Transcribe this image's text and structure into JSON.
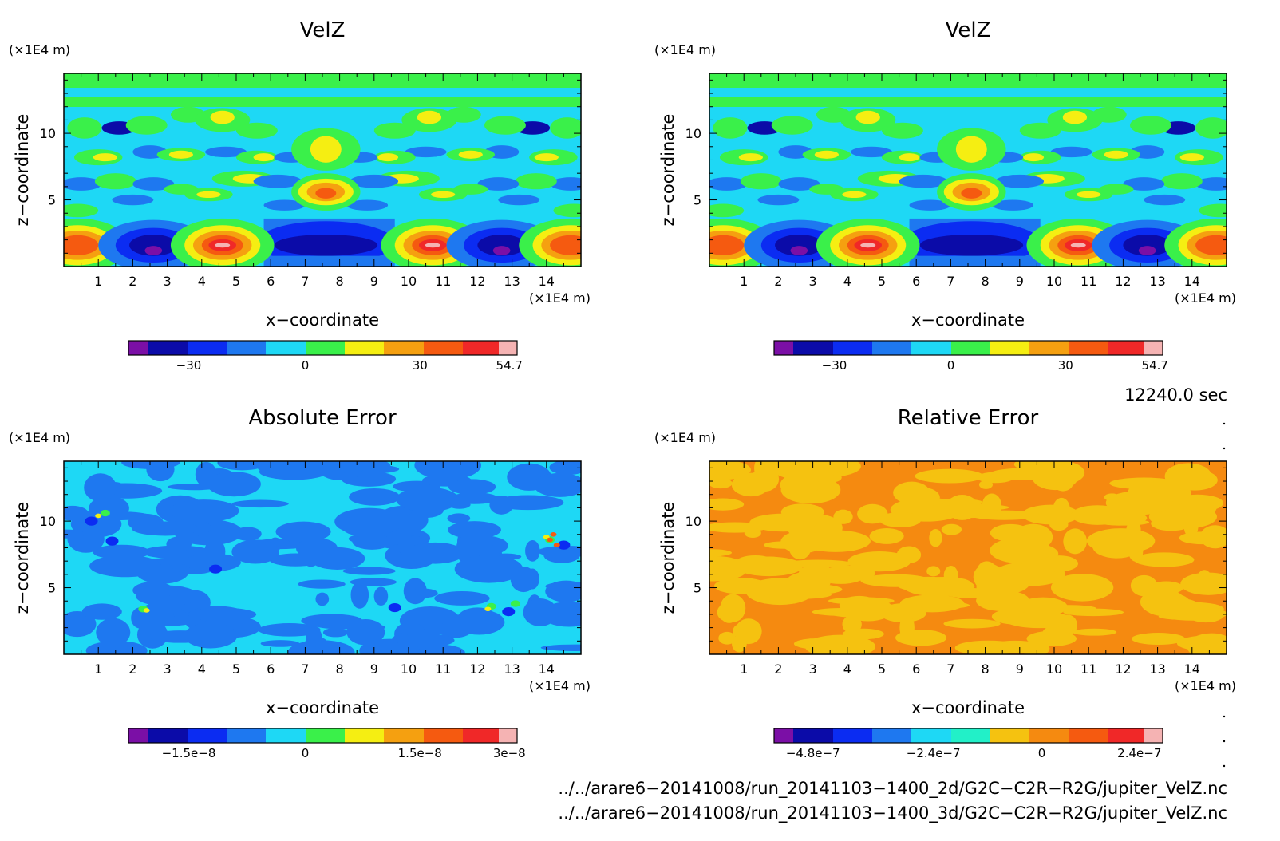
{
  "panels": [
    {
      "title": "VelZ",
      "unit_label_y": "(×1E4 m)",
      "unit_label_x": "(×1E4 m)",
      "xlabel": "x−coordinate",
      "ylabel": "z−coordinate",
      "x_ticks": [
        "1",
        "2",
        "3",
        "4",
        "5",
        "6",
        "7",
        "8",
        "9",
        "10",
        "11",
        "12",
        "13",
        "14"
      ],
      "y_ticks": [
        "5",
        "10"
      ],
      "colorbar": {
        "colors": [
          "#7b0fa6",
          "#0b0ba8",
          "#0b2cf2",
          "#1e78f0",
          "#1ed8f5",
          "#3af04a",
          "#f5ee12",
          "#f5a010",
          "#f55a10",
          "#f02828",
          "#f5b3b3"
        ],
        "labels": [
          "−30",
          "0",
          "30",
          "54.7"
        ]
      }
    },
    {
      "title": "VelZ",
      "unit_label_y": "(×1E4 m)",
      "unit_label_x": "(×1E4 m)",
      "xlabel": "x−coordinate",
      "ylabel": "z−coordinate",
      "x_ticks": [
        "1",
        "2",
        "3",
        "4",
        "5",
        "6",
        "7",
        "8",
        "9",
        "10",
        "11",
        "12",
        "13",
        "14"
      ],
      "y_ticks": [
        "5",
        "10"
      ],
      "colorbar": {
        "colors": [
          "#7b0fa6",
          "#0b0ba8",
          "#0b2cf2",
          "#1e78f0",
          "#1ed8f5",
          "#3af04a",
          "#f5ee12",
          "#f5a010",
          "#f55a10",
          "#f02828",
          "#f5b3b3"
        ],
        "labels": [
          "−30",
          "0",
          "30",
          "54.7"
        ]
      }
    },
    {
      "title": "Absolute Error",
      "unit_label_y": "(×1E4 m)",
      "unit_label_x": "(×1E4 m)",
      "xlabel": "x−coordinate",
      "ylabel": "z−coordinate",
      "x_ticks": [
        "1",
        "2",
        "3",
        "4",
        "5",
        "6",
        "7",
        "8",
        "9",
        "10",
        "11",
        "12",
        "13",
        "14"
      ],
      "y_ticks": [
        "5",
        "10"
      ],
      "colorbar": {
        "colors": [
          "#7b0fa6",
          "#0b0ba8",
          "#0b2cf2",
          "#1e78f0",
          "#1ed8f5",
          "#3af04a",
          "#f5ee12",
          "#f5a010",
          "#f55a10",
          "#f02828",
          "#f5b3b3"
        ],
        "labels": [
          "−1.5e−8",
          "0",
          "1.5e−8",
          "3e−8"
        ]
      }
    },
    {
      "title": "Relative Error",
      "unit_label_y": "(×1E4 m)",
      "unit_label_x": "(×1E4 m)",
      "xlabel": "x−coordinate",
      "ylabel": "z−coordinate",
      "x_ticks": [
        "1",
        "2",
        "3",
        "4",
        "5",
        "6",
        "7",
        "8",
        "9",
        "10",
        "11",
        "12",
        "13",
        "14"
      ],
      "y_ticks": [
        "5",
        "10"
      ],
      "colorbar": {
        "colors": [
          "#7b0fa6",
          "#0b0ba8",
          "#0b2cf2",
          "#1e78f0",
          "#1ed8f5",
          "#22f0c8",
          "#f5c210",
          "#f58a10",
          "#f55a10",
          "#f02828",
          "#f5b3b3"
        ],
        "labels": [
          "−4.8e−7",
          "−2.4e−7",
          "0",
          "2.4e−7"
        ]
      }
    }
  ],
  "time_label": "12240.0 sec",
  "file_paths": [
    "../../arare6−20141008/run_20141103−1400_2d/G2C−C2R−R2G/jupiter_VelZ.nc",
    "../../arare6−20141008/run_20141103−1400_3d/G2C−C2R−R2G/jupiter_VelZ.nc"
  ],
  "chart_data": [
    {
      "type": "heatmap",
      "title": "VelZ",
      "xlabel": "x−coordinate",
      "ylabel": "z−coordinate",
      "xlim": [
        0,
        15
      ],
      "ylim": [
        0,
        14.5
      ],
      "colorbar_ticks": [
        -30,
        0,
        30,
        54.7
      ],
      "features": [
        {
          "x": 0.5,
          "z": 1.6,
          "value": 40
        },
        {
          "x": 2.5,
          "z": 1.2,
          "value": -45
        },
        {
          "x": 4.5,
          "z": 1.6,
          "value": 54.7
        },
        {
          "x": 7.6,
          "z": 1.6,
          "value": -35
        },
        {
          "x": 10.6,
          "z": 1.6,
          "value": 54.7
        },
        {
          "x": 12.6,
          "z": 1.2,
          "value": -45
        },
        {
          "x": 14.6,
          "z": 1.6,
          "value": 40
        },
        {
          "x": 7.6,
          "z": 5.6,
          "value": 30
        },
        {
          "x": 7.6,
          "z": 8.8,
          "value": 15
        }
      ]
    },
    {
      "type": "heatmap",
      "title": "VelZ",
      "xlabel": "x−coordinate",
      "ylabel": "z−coordinate",
      "xlim": [
        0,
        15
      ],
      "ylim": [
        0,
        14.5
      ],
      "colorbar_ticks": [
        -30,
        0,
        30,
        54.7
      ]
    },
    {
      "type": "heatmap",
      "title": "Absolute Error",
      "xlabel": "x−coordinate",
      "ylabel": "z−coordinate",
      "xlim": [
        0,
        15
      ],
      "ylim": [
        0,
        14.5
      ],
      "colorbar_ticks": [
        -1.5e-08,
        0,
        1.5e-08,
        3e-08
      ]
    },
    {
      "type": "heatmap",
      "title": "Relative Error",
      "xlabel": "x−coordinate",
      "ylabel": "z−coordinate",
      "xlim": [
        0,
        15
      ],
      "ylim": [
        0,
        14.5
      ],
      "colorbar_ticks": [
        -4.8e-07,
        -2.4e-07,
        0,
        2.4e-07
      ]
    }
  ]
}
